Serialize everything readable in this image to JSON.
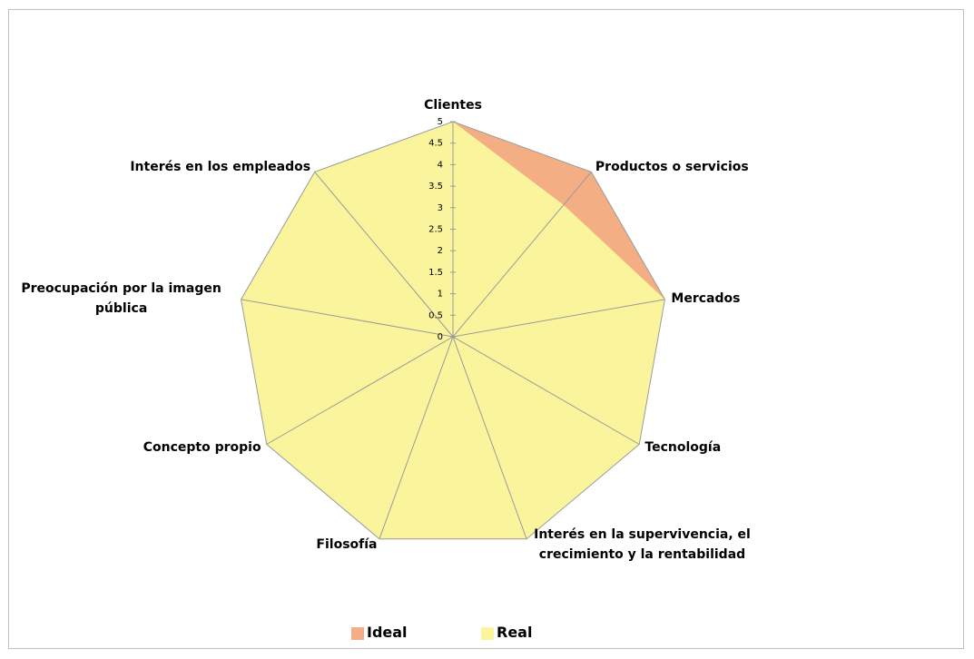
{
  "chart_data": {
    "type": "radar",
    "categories": [
      "Clientes",
      "Productos o servicios",
      "Mercados",
      "Tecnología",
      "Interés en la supervivencia, el crecimiento y la rentabilidad",
      "Filosofía",
      "Concepto propio",
      "Preocupación por la imagen pública",
      "Interés en los empleados"
    ],
    "series": [
      {
        "name": "Ideal",
        "color": "#f4ae84",
        "values": [
          5,
          5,
          5,
          5,
          5,
          5,
          5,
          5,
          5
        ]
      },
      {
        "name": "Real",
        "color": "#faf59c",
        "values": [
          5,
          4,
          5,
          5,
          5,
          5,
          5,
          5,
          5
        ]
      }
    ],
    "ylim": [
      0,
      5
    ],
    "yticks": [
      0,
      0.5,
      1,
      1.5,
      2,
      2.5,
      3,
      3.5,
      4,
      4.5,
      5
    ],
    "legend": "bottom"
  }
}
